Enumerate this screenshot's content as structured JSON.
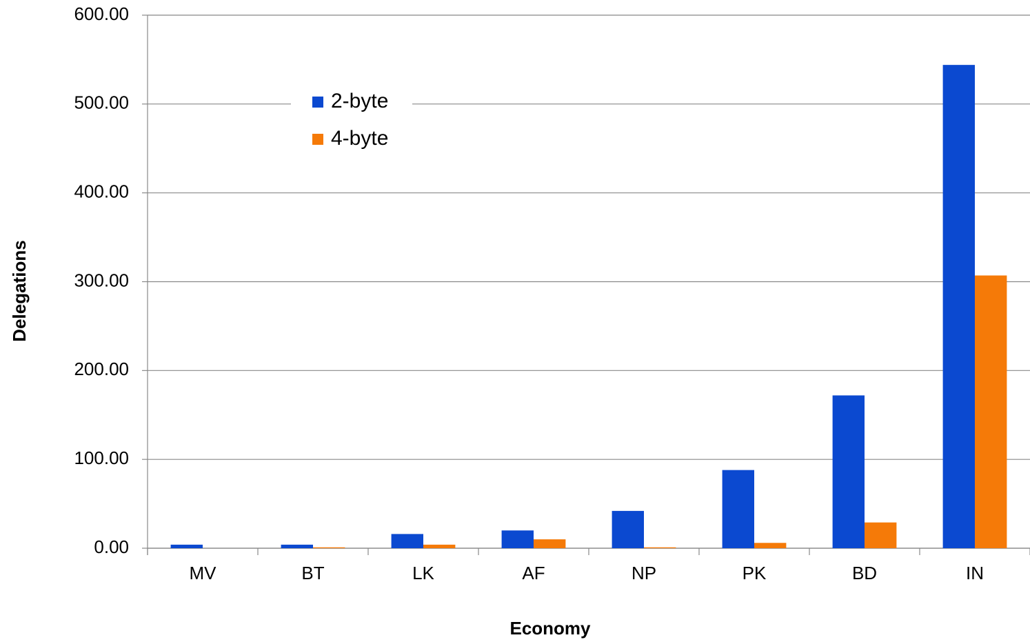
{
  "chart_data": {
    "type": "bar",
    "x_label": "Economy",
    "y_label": "Delegations",
    "categories": [
      "MV",
      "BT",
      "LK",
      "AF",
      "NP",
      "PK",
      "BD",
      "IN"
    ],
    "series": [
      {
        "name": "2-byte",
        "color": "#0b49d0",
        "values": [
          4,
          4,
          16,
          20,
          42,
          88,
          172,
          544
        ]
      },
      {
        "name": "4-byte",
        "color": "#f57a08",
        "values": [
          0,
          1,
          4,
          10,
          1,
          6,
          29,
          307
        ]
      }
    ],
    "ylim": [
      0,
      600
    ],
    "yticks": [
      {
        "value": 0,
        "label": "0.00"
      },
      {
        "value": 100,
        "label": "100.00"
      },
      {
        "value": 200,
        "label": "200.00"
      },
      {
        "value": 300,
        "label": "300.00"
      },
      {
        "value": 400,
        "label": "400.00"
      },
      {
        "value": 500,
        "label": "500.00"
      },
      {
        "value": 600,
        "label": "600.00"
      }
    ],
    "grid": true,
    "legend": "top-left"
  }
}
